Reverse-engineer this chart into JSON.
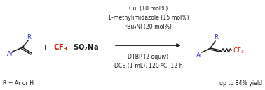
{
  "bg_color": "#ffffff",
  "blue_color": "#3333cc",
  "red_color": "#cc1100",
  "black_color": "#1a1a1a",
  "top_text_lines": [
    "CuI (10 mol%)",
    "1-methylimidazole (15 mol%)",
    "ⁿBu₄NI (20 mol%)"
  ],
  "bottom_text_lines": [
    "DTBP (2 equiv)",
    "DCE (1 mL), 120 ºC, 12 h"
  ],
  "footer_left": "R = Ar or H",
  "footer_right": "up to 84% yield",
  "figsize": [
    3.78,
    1.29
  ],
  "dpi": 100
}
